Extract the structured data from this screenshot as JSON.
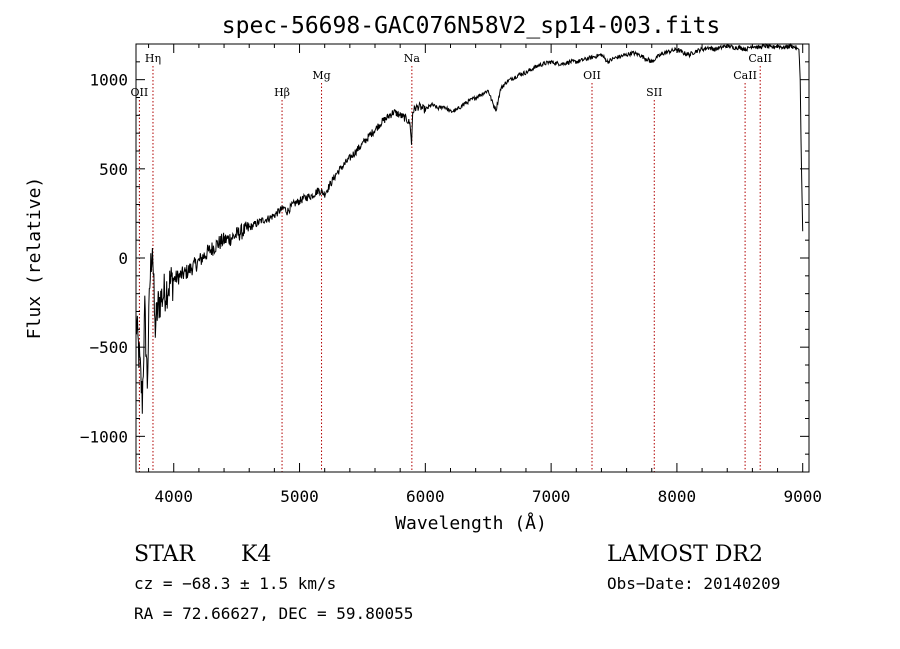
{
  "chart_data": {
    "type": "line",
    "title": "spec-56698-GAC076N58V2_sp14-003.fits",
    "xlabel": "Wavelength (Å)",
    "ylabel": "Flux (relative)",
    "xlim": [
      3700,
      9050
    ],
    "ylim": [
      -1200,
      1200
    ],
    "x_ticks": [
      4000,
      5000,
      6000,
      7000,
      8000,
      9000
    ],
    "y_ticks": [
      -1000,
      -500,
      0,
      500,
      1000
    ],
    "x_tick_labels": [
      "4000",
      "5000",
      "6000",
      "7000",
      "8000",
      "9000"
    ],
    "y_tick_labels": [
      "−1000",
      "−500",
      "0",
      "500",
      "1000"
    ],
    "series": [
      {
        "name": "flux",
        "x": [
          3700,
          3730,
          3750,
          3770,
          3790,
          3810,
          3830,
          3850,
          3880,
          3920,
          3960,
          4000,
          4050,
          4100,
          4150,
          4200,
          4250,
          4300,
          4350,
          4400,
          4450,
          4500,
          4550,
          4600,
          4650,
          4700,
          4750,
          4800,
          4850,
          4880,
          4900,
          4950,
          5000,
          5050,
          5100,
          5150,
          5200,
          5250,
          5300,
          5350,
          5400,
          5450,
          5500,
          5550,
          5600,
          5650,
          5700,
          5750,
          5800,
          5850,
          5880,
          5890,
          5900,
          5920,
          5950,
          6000,
          6050,
          6100,
          6150,
          6200,
          6250,
          6300,
          6350,
          6400,
          6450,
          6500,
          6540,
          6563,
          6580,
          6600,
          6650,
          6700,
          6750,
          6800,
          6850,
          6900,
          6950,
          7000,
          7050,
          7100,
          7150,
          7200,
          7250,
          7300,
          7350,
          7400,
          7450,
          7500,
          7550,
          7600,
          7650,
          7700,
          7750,
          7800,
          7850,
          7900,
          7950,
          8000,
          8050,
          8100,
          8150,
          8200,
          8250,
          8300,
          8350,
          8400,
          8450,
          8500,
          8550,
          8600,
          8650,
          8700,
          8750,
          8800,
          8850,
          8900,
          8950,
          8970,
          8980,
          8990,
          9000
        ],
        "y": [
          -350,
          -600,
          -800,
          -300,
          -700,
          -150,
          100,
          -400,
          -250,
          -200,
          -150,
          -120,
          -100,
          -80,
          -50,
          -20,
          20,
          50,
          80,
          100,
          110,
          130,
          150,
          170,
          190,
          210,
          220,
          240,
          270,
          280,
          260,
          300,
          320,
          340,
          350,
          380,
          360,
          420,
          480,
          520,
          560,
          600,
          640,
          680,
          720,
          760,
          790,
          820,
          800,
          780,
          750,
          630,
          820,
          840,
          850,
          830,
          860,
          840,
          850,
          820,
          830,
          860,
          880,
          900,
          920,
          940,
          860,
          830,
          890,
          950,
          990,
          1010,
          1030,
          1040,
          1060,
          1080,
          1090,
          1100,
          1090,
          1090,
          1100,
          1100,
          1110,
          1120,
          1130,
          1140,
          1100,
          1120,
          1130,
          1140,
          1150,
          1140,
          1120,
          1100,
          1130,
          1150,
          1160,
          1170,
          1150,
          1140,
          1160,
          1170,
          1180,
          1170,
          1180,
          1190,
          1180,
          1180,
          1170,
          1190,
          1180,
          1190,
          1180,
          1190,
          1180,
          1190,
          1180,
          1170,
          1000,
          500,
          150
        ]
      }
    ],
    "lines": [
      {
        "label": "OII",
        "wavelength": 3727,
        "level": "low"
      },
      {
        "label": "Hη",
        "wavelength": 3835,
        "level": "high"
      },
      {
        "label": "Hβ",
        "wavelength": 4861,
        "level": "low"
      },
      {
        "label": "Mg",
        "wavelength": 5175,
        "level": "mid"
      },
      {
        "label": "Na",
        "wavelength": 5893,
        "level": "high"
      },
      {
        "label": "OII",
        "wavelength": 7325,
        "level": "mid"
      },
      {
        "label": "SII",
        "wavelength": 7820,
        "level": "low"
      },
      {
        "label": "CaII",
        "wavelength": 8542,
        "level": "mid"
      },
      {
        "label": "CaII",
        "wavelength": 8662,
        "level": "high"
      }
    ]
  },
  "info": {
    "class": "STAR",
    "subclass": "K4",
    "survey": "LAMOST DR2",
    "cz": "cz = −68.3 ± 1.5 km/s",
    "obs_date": "Obs−Date: 20140209",
    "coords": "RA =  72.66627, DEC =  59.80055"
  },
  "colors": {
    "spectrum": "#000000",
    "line_marker": "#b00000"
  }
}
